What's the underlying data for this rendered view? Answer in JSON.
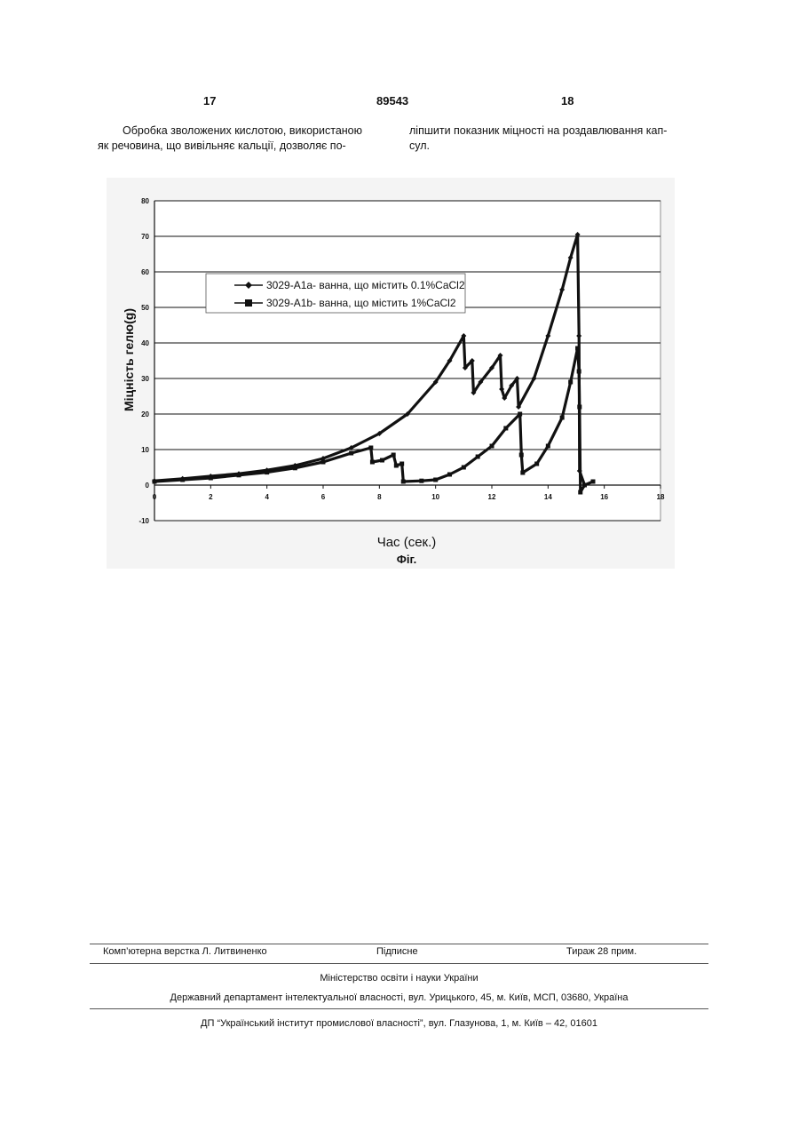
{
  "header": {
    "page_left": "17",
    "patent_number": "89543",
    "page_right": "18"
  },
  "body_text": {
    "left_lines": [
      "Обробка зволожених кислотою, використаною",
      "як речовина, що вивільняє кальції, дозволяє по-"
    ],
    "right_lines": [
      "ліпшити показник міцності на роздавлювання кап-",
      "сул."
    ]
  },
  "chart_data": {
    "type": "line",
    "xlabel": "Час (сек.)",
    "ylabel": "Міцність гелю(g)",
    "caption": "Фіг.",
    "xlim": [
      0,
      18
    ],
    "ylim": [
      -10,
      80
    ],
    "x_ticks": [
      "0",
      "2",
      "4",
      "6",
      "8",
      "10",
      "12",
      "14",
      "16",
      "18"
    ],
    "y_ticks": [
      "-10",
      "0",
      "10",
      "20",
      "30",
      "40",
      "50",
      "60",
      "70",
      "80"
    ],
    "grid": true,
    "legend_position": "upper-left",
    "series": [
      {
        "name": "3029-A1a- ванна, що містить 0.1%CaCl2",
        "marker": "diamond",
        "points": [
          [
            0,
            1.2
          ],
          [
            1,
            1.8
          ],
          [
            2,
            2.5
          ],
          [
            3,
            3.2
          ],
          [
            4,
            4.2
          ],
          [
            5,
            5.5
          ],
          [
            6,
            7.5
          ],
          [
            7,
            10.5
          ],
          [
            8,
            14.5
          ],
          [
            9,
            20
          ],
          [
            10,
            29
          ],
          [
            10.5,
            35
          ],
          [
            11,
            42
          ],
          [
            11.05,
            33
          ],
          [
            11.3,
            35
          ],
          [
            11.35,
            26
          ],
          [
            11.6,
            29
          ],
          [
            12,
            33
          ],
          [
            12.3,
            36.5
          ],
          [
            12.35,
            27
          ],
          [
            12.45,
            24.5
          ],
          [
            12.7,
            28
          ],
          [
            12.9,
            30
          ],
          [
            12.95,
            22
          ],
          [
            13.5,
            30
          ],
          [
            14,
            42
          ],
          [
            14.5,
            55
          ],
          [
            14.8,
            64
          ],
          [
            15.05,
            70.5
          ],
          [
            15.1,
            42
          ],
          [
            15.12,
            4
          ],
          [
            15.3,
            0
          ]
        ]
      },
      {
        "name": "3029-A1b- ванна, що містить 1%CaCl2",
        "marker": "square",
        "points": [
          [
            0,
            1
          ],
          [
            1,
            1.5
          ],
          [
            2,
            2
          ],
          [
            3,
            2.8
          ],
          [
            4,
            3.6
          ],
          [
            5,
            4.8
          ],
          [
            6,
            6.5
          ],
          [
            7,
            9
          ],
          [
            7.7,
            10.5
          ],
          [
            7.75,
            6.5
          ],
          [
            8.1,
            7
          ],
          [
            8.5,
            8.5
          ],
          [
            8.6,
            5.5
          ],
          [
            8.8,
            6
          ],
          [
            8.85,
            1
          ],
          [
            9.5,
            1.2
          ],
          [
            10,
            1.5
          ],
          [
            10.5,
            3
          ],
          [
            11,
            5
          ],
          [
            11.5,
            8
          ],
          [
            12,
            11
          ],
          [
            12.5,
            16
          ],
          [
            13,
            20
          ],
          [
            13.05,
            8.5
          ],
          [
            13.1,
            3.5
          ],
          [
            13.6,
            6
          ],
          [
            14,
            11
          ],
          [
            14.5,
            19
          ],
          [
            14.8,
            29
          ],
          [
            15.05,
            38.5
          ],
          [
            15.1,
            32
          ],
          [
            15.12,
            22
          ],
          [
            15.15,
            -2
          ],
          [
            15.3,
            0
          ],
          [
            15.6,
            1
          ]
        ]
      }
    ]
  },
  "footer": {
    "layout": "Комп’ютерна верстка Л. Литвиненко",
    "signed": "Підписне",
    "circulation": "Тираж 28 прим.",
    "ministry": "Міністерство освіти і науки України",
    "department": "Державний департамент інтелектуальної власності, вул. Урицького, 45, м. Київ, МСП, 03680, Україна",
    "publisher": "ДП “Український інститут промислової власності”, вул. Глазунова, 1, м. Київ – 42, 01601"
  }
}
